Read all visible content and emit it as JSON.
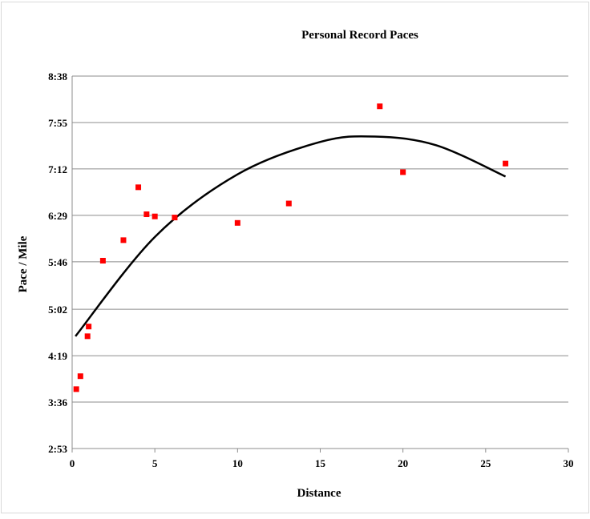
{
  "chart_data": {
    "type": "scatter",
    "title": "Personal Record Paces",
    "xlabel": "Distance",
    "ylabel": "Pace / Mile",
    "xlim": [
      0,
      30
    ],
    "ylim": [
      "2:53",
      "8:38"
    ],
    "x_ticks": [
      "0",
      "5",
      "10",
      "15",
      "20",
      "25",
      "30"
    ],
    "y_ticks": [
      "2:53",
      "3:36",
      "4:19",
      "5:02",
      "5:46",
      "6:29",
      "7:12",
      "7:55",
      "8:38"
    ],
    "grid": "horizontal",
    "legend": "none",
    "series": [
      {
        "marker": "square",
        "color": "#ff0000",
        "points": [
          {
            "x": 0.25,
            "y": "3:48"
          },
          {
            "x": 0.5,
            "y": "4:00"
          },
          {
            "x": 0.93,
            "y": "4:37"
          },
          {
            "x": 1.0,
            "y": "4:46"
          },
          {
            "x": 1.86,
            "y": "5:47"
          },
          {
            "x": 3.1,
            "y": "6:06"
          },
          {
            "x": 4.0,
            "y": "6:55"
          },
          {
            "x": 4.5,
            "y": "6:30"
          },
          {
            "x": 5.0,
            "y": "6:28"
          },
          {
            "x": 6.2,
            "y": "6:27"
          },
          {
            "x": 10.0,
            "y": "6:22"
          },
          {
            "x": 13.1,
            "y": "6:40"
          },
          {
            "x": 18.6,
            "y": "8:10"
          },
          {
            "x": 20.0,
            "y": "7:09"
          },
          {
            "x": 26.2,
            "y": "7:17"
          }
        ]
      }
    ],
    "trendline": {
      "type": "polynomial",
      "color": "#000000",
      "points": [
        {
          "x": 0.2,
          "y": "4:37"
        },
        {
          "x": 5.0,
          "y": "6:09"
        },
        {
          "x": 10.0,
          "y": "7:07"
        },
        {
          "x": 15.0,
          "y": "7:37"
        },
        {
          "x": 18.3,
          "y": "7:42"
        },
        {
          "x": 22.0,
          "y": "7:34"
        },
        {
          "x": 26.2,
          "y": "7:05"
        }
      ]
    }
  }
}
